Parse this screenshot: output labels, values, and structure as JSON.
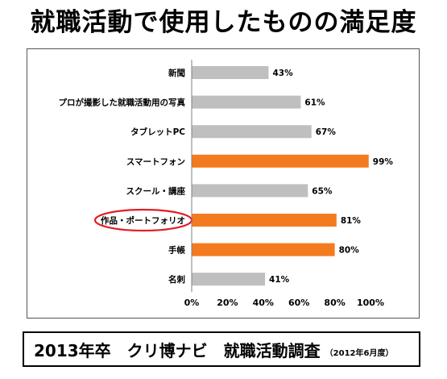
{
  "title": "就職活動で使用したものの満足度",
  "footer": {
    "main": "2013年卒　クリ博ナビ　就職活動調査",
    "sub": "（2012年6月度）"
  },
  "colors": {
    "gray_bar": "#BFBFBF",
    "orange_bar": "#F47A20",
    "highlight_ellipse": "#E31E24"
  },
  "chart_data": {
    "type": "bar",
    "orientation": "horizontal",
    "categories": [
      "新聞",
      "プロが撮影した就職活動用の写真",
      "タブレットPC",
      "スマートフォン",
      "スクール・講座",
      "作品・ポートフォリオ",
      "手帳",
      "名刺"
    ],
    "values": [
      43,
      61,
      67,
      99,
      65,
      81,
      80,
      41
    ],
    "value_labels": [
      "43%",
      "61%",
      "67%",
      "99%",
      "65%",
      "81%",
      "80%",
      "41%"
    ],
    "highlighted": [
      false,
      false,
      false,
      true,
      false,
      true,
      true,
      false
    ],
    "circled_category": "作品・ポートフォリオ",
    "xlim": [
      0,
      100
    ],
    "xticks": [
      "0%",
      "20%",
      "40%",
      "60%",
      "80%",
      "100%"
    ],
    "grid": false,
    "xlabel": "",
    "ylabel": ""
  }
}
